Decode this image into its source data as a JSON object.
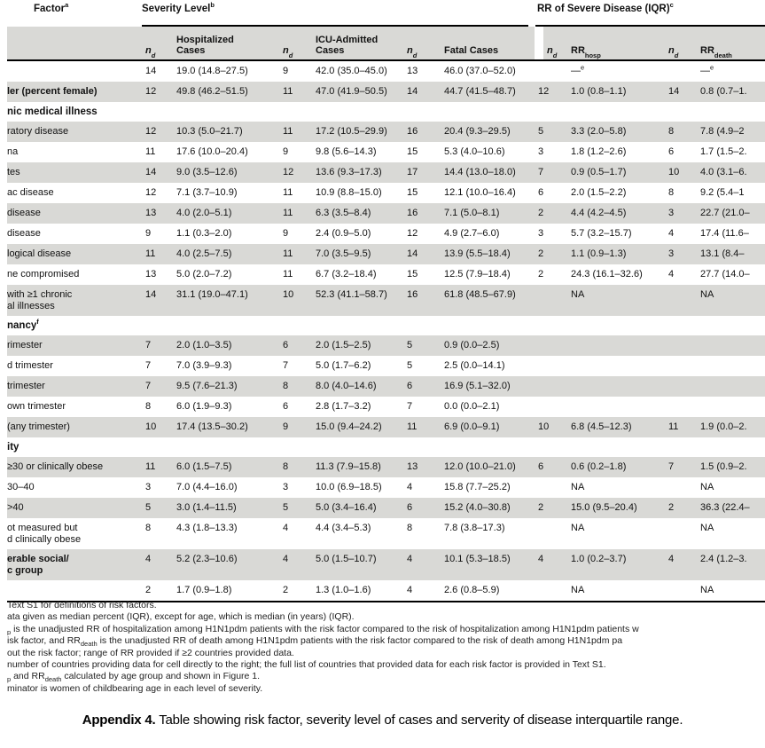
{
  "table": {
    "group_headers": [
      "Factor^a^",
      "Severity Level^b^",
      "RR of Severe Disease (IQR)^c^"
    ],
    "sub_headers": [
      "n^d^",
      "Hospitalized\nCases",
      "n^d^",
      "ICU-Admitted\nCases",
      "n^d^",
      "Fatal Cases",
      "n^d^",
      "RR~hosp~",
      "n^d^",
      "RR~death~"
    ],
    "rows": [
      {
        "type": "data",
        "shaded": false,
        "bold": false,
        "label": "",
        "cells": [
          "14",
          "19.0 (14.8–27.5)",
          "9",
          "42.0 (35.0–45.0)",
          "13",
          "46.0 (37.0–52.0)",
          "",
          "—^e^",
          "",
          "—^e^"
        ]
      },
      {
        "type": "data",
        "shaded": true,
        "bold": true,
        "label": "ler (percent female)",
        "cells": [
          "12",
          "49.8 (46.2–51.5)",
          "11",
          "47.0 (41.9–50.5)",
          "14",
          "44.7 (41.5–48.7)",
          "12",
          "1.0 (0.8–1.1)",
          "14",
          "0.8 (0.7–1."
        ]
      },
      {
        "type": "section",
        "label": "nic medical illness"
      },
      {
        "type": "data",
        "shaded": true,
        "bold": false,
        "label": "ratory disease",
        "cells": [
          "12",
          "10.3 (5.0–21.7)",
          "11",
          "17.2 (10.5–29.9)",
          "16",
          "20.4 (9.3–29.5)",
          "5",
          "3.3 (2.0–5.8)",
          "8",
          "7.8 (4.9–2"
        ]
      },
      {
        "type": "data",
        "shaded": false,
        "bold": false,
        "label": "na",
        "cells": [
          "11",
          "17.6 (10.0–20.4)",
          "9",
          "9.8 (5.6–14.3)",
          "15",
          "5.3 (4.0–10.6)",
          "3",
          "1.8 (1.2–2.6)",
          "6",
          "1.7 (1.5–2."
        ]
      },
      {
        "type": "data",
        "shaded": true,
        "bold": false,
        "label": "tes",
        "cells": [
          "14",
          "9.0 (3.5–12.6)",
          "12",
          "13.6 (9.3–17.3)",
          "17",
          "14.4 (13.0–18.0)",
          "7",
          "0.9 (0.5–1.7)",
          "10",
          "4.0 (3.1–6."
        ]
      },
      {
        "type": "data",
        "shaded": false,
        "bold": false,
        "label": "ac disease",
        "cells": [
          "12",
          "7.1 (3.7–10.9)",
          "11",
          "10.9 (8.8–15.0)",
          "15",
          "12.1 (10.0–16.4)",
          "6",
          "2.0 (1.5–2.2)",
          "8",
          "9.2 (5.4–1"
        ]
      },
      {
        "type": "data",
        "shaded": true,
        "bold": false,
        "label": "disease",
        "cells": [
          "13",
          "4.0 (2.0–5.1)",
          "11",
          "6.3 (3.5–8.4)",
          "16",
          "7.1 (5.0–8.1)",
          "2",
          "4.4 (4.2–4.5)",
          "3",
          "22.7 (21.0–"
        ]
      },
      {
        "type": "data",
        "shaded": false,
        "bold": false,
        "label": "disease",
        "cells": [
          "9",
          "1.1 (0.3–2.0)",
          "9",
          "2.4 (0.9–5.0)",
          "12",
          "4.9 (2.7–6.0)",
          "3",
          "5.7 (3.2–15.7)",
          "4",
          "17.4 (11.6–"
        ]
      },
      {
        "type": "data",
        "shaded": true,
        "bold": false,
        "label": "logical disease",
        "cells": [
          "11",
          "4.0 (2.5–7.5)",
          "11",
          "7.0 (3.5–9.5)",
          "14",
          "13.9 (5.5–18.4)",
          "2",
          "1.1 (0.9–1.3)",
          "3",
          "13.1 (8.4–"
        ]
      },
      {
        "type": "data",
        "shaded": false,
        "bold": false,
        "label": "ne compromised",
        "cells": [
          "13",
          "5.0 (2.0–7.2)",
          "11",
          "6.7 (3.2–18.4)",
          "15",
          "12.5 (7.9–18.4)",
          "2",
          "24.3 (16.1–32.6)",
          "4",
          "27.7 (14.0–"
        ]
      },
      {
        "type": "data",
        "shaded": true,
        "bold": false,
        "label": "with ≥1 chronic\nal illnesses",
        "cells": [
          "14",
          "31.1 (19.0–47.1)",
          "10",
          "52.3 (41.1–58.7)",
          "16",
          "61.8 (48.5–67.9)",
          "",
          "NA",
          "",
          "NA"
        ]
      },
      {
        "type": "section",
        "label": "nancy^f^"
      },
      {
        "type": "data",
        "shaded": true,
        "bold": false,
        "label": "rimester",
        "cells": [
          "7",
          "2.0 (1.0–3.5)",
          "6",
          "2.0 (1.5–2.5)",
          "5",
          "0.9 (0.0–2.5)",
          "",
          "",
          "",
          ""
        ]
      },
      {
        "type": "data",
        "shaded": false,
        "bold": false,
        "label": "d trimester",
        "cells": [
          "7",
          "7.0 (3.9–9.3)",
          "7",
          "5.0 (1.7–6.2)",
          "5",
          "2.5 (0.0–14.1)",
          "",
          "",
          "",
          ""
        ]
      },
      {
        "type": "data",
        "shaded": true,
        "bold": false,
        "label": "trimester",
        "cells": [
          "7",
          "9.5 (7.6–21.3)",
          "8",
          "8.0 (4.0–14.6)",
          "6",
          "16.9 (5.1–32.0)",
          "",
          "",
          "",
          ""
        ]
      },
      {
        "type": "data",
        "shaded": false,
        "bold": false,
        "label": "own trimester",
        "cells": [
          "8",
          "6.0 (1.9–9.3)",
          "6",
          "2.8 (1.7–3.2)",
          "7",
          "0.0 (0.0–2.1)",
          "",
          "",
          "",
          ""
        ]
      },
      {
        "type": "data",
        "shaded": true,
        "bold": false,
        "label": "(any trimester)",
        "cells": [
          "10",
          "17.4 (13.5–30.2)",
          "9",
          "15.0 (9.4–24.2)",
          "11",
          "6.9 (0.0–9.1)",
          "10",
          "6.8 (4.5–12.3)",
          "11",
          "1.9 (0.0–2."
        ]
      },
      {
        "type": "section",
        "label": "ity"
      },
      {
        "type": "data",
        "shaded": true,
        "bold": false,
        "label": "≥30 or clinically obese",
        "cells": [
          "11",
          "6.0 (1.5–7.5)",
          "8",
          "11.3 (7.9–15.8)",
          "13",
          "12.0 (10.0–21.0)",
          "6",
          "0.6 (0.2–1.8)",
          "7",
          "1.5 (0.9–2."
        ]
      },
      {
        "type": "data",
        "shaded": false,
        "bold": false,
        "label": "30–40",
        "cells": [
          "3",
          "7.0 (4.4–16.0)",
          "3",
          "10.0 (6.9–18.5)",
          "4",
          "15.8 (7.7–25.2)",
          "",
          "NA",
          "",
          "NA"
        ]
      },
      {
        "type": "data",
        "shaded": true,
        "bold": false,
        "label": ">40",
        "cells": [
          "5",
          "3.0 (1.4–11.5)",
          "5",
          "5.0 (3.4–16.4)",
          "6",
          "15.2 (4.0–30.8)",
          "2",
          "15.0 (9.5–20.4)",
          "2",
          "36.3 (22.4–"
        ]
      },
      {
        "type": "data",
        "shaded": false,
        "bold": false,
        "label": "ot measured but\nd clinically obese",
        "cells": [
          "8",
          "4.3 (1.8–13.3)",
          "4",
          "4.4 (3.4–5.3)",
          "8",
          "7.8 (3.8–17.3)",
          "",
          "NA",
          "",
          "NA"
        ]
      },
      {
        "type": "data",
        "shaded": true,
        "bold": true,
        "label": "erable social/\nc group",
        "cells": [
          "4",
          "5.2 (2.3–10.6)",
          "4",
          "5.0 (1.5–10.7)",
          "4",
          "10.1 (5.3–18.5)",
          "4",
          "1.0 (0.2–3.7)",
          "4",
          "2.4 (1.2–3."
        ]
      },
      {
        "type": "data",
        "shaded": false,
        "bold": false,
        "label": "",
        "cells": [
          "2",
          "1.7 (0.9–1.8)",
          "2",
          "1.3 (1.0–1.6)",
          "4",
          "2.6 (0.8–5.9)",
          "",
          "NA",
          "",
          "NA"
        ]
      }
    ]
  },
  "footnotes": [
    "Text S1 for definitions of risk factors.",
    "ata given as median percent (IQR), except for age, which is median (in years) (IQR).",
    "~p~ is the unadjusted RR of hospitalization among H1N1pdm patients with the risk factor compared to the risk of hospitalization among H1N1pdm patients w",
    "isk factor, and RR~death~ is the unadjusted RR of death among H1N1pdm patients with the risk factor compared to the risk of death among H1N1pdm pa",
    "out the risk factor; range of RR provided if ≥2 countries provided data.",
    "number of countries providing data for cell directly to the right; the full list of countries that provided data for each risk factor is provided in Text S1.",
    "~p~ and RR~death~ calculated by age group and shown in Figure 1.",
    "minator is women of childbearing age in each level of severity."
  ],
  "caption": {
    "label": "Appendix 4.",
    "text": " Table showing risk factor, severity level of cases and serverity of disease interquartile range."
  }
}
